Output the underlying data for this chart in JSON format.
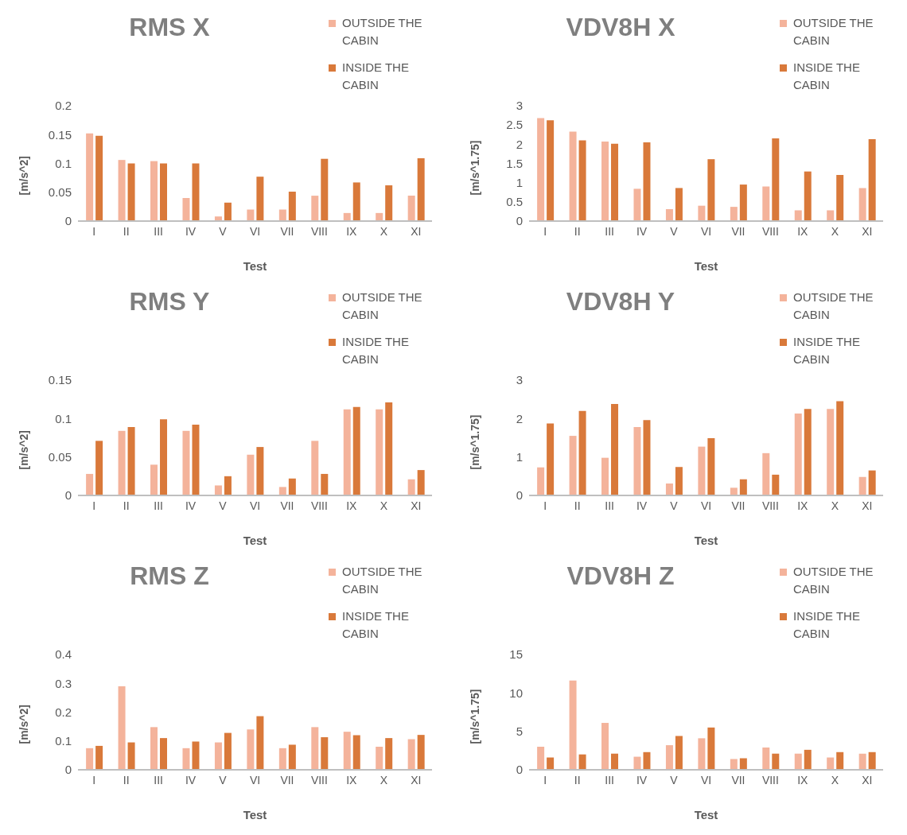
{
  "chart_data": [
    {
      "type": "bar",
      "title": "RMS X",
      "xlabel": "Test",
      "ylabel": "[m/s^2]",
      "categories": [
        "I",
        "II",
        "III",
        "IV",
        "V",
        "VI",
        "VII",
        "VIII",
        "IX",
        "X",
        "XI"
      ],
      "ylim": [
        0,
        0.2
      ],
      "yticks": [
        0,
        0.05,
        0.1,
        0.15,
        0.2
      ],
      "grid": false,
      "legend": "top right",
      "series": [
        {
          "name": "OUTSIDE THE CABIN",
          "color": "#f4b39b",
          "values": [
            0.152,
            0.106,
            0.104,
            0.04,
            0.008,
            0.02,
            0.02,
            0.044,
            0.014,
            0.014,
            0.044
          ]
        },
        {
          "name": "INSIDE THE CABIN",
          "color": "#d9793a",
          "values": [
            0.148,
            0.1,
            0.1,
            0.1,
            0.032,
            0.077,
            0.051,
            0.108,
            0.067,
            0.062,
            0.109
          ]
        }
      ]
    },
    {
      "type": "bar",
      "title": "VDV8H X",
      "xlabel": "Test",
      "ylabel": "[m/s^1.75]",
      "categories": [
        "I",
        "II",
        "III",
        "IV",
        "V",
        "VI",
        "VII",
        "VIII",
        "IX",
        "X",
        "XI"
      ],
      "ylim": [
        0,
        3
      ],
      "yticks": [
        0,
        0.5,
        1,
        1.5,
        2,
        2.5,
        3
      ],
      "grid": false,
      "legend": "top right",
      "series": [
        {
          "name": "OUTSIDE THE CABIN",
          "color": "#f4b39b",
          "values": [
            2.68,
            2.33,
            2.07,
            0.84,
            0.31,
            0.4,
            0.37,
            0.9,
            0.28,
            0.28,
            0.86
          ]
        },
        {
          "name": "INSIDE THE CABIN",
          "color": "#d9793a",
          "values": [
            2.62,
            2.1,
            2.01,
            2.05,
            0.86,
            1.61,
            0.95,
            2.15,
            1.29,
            1.2,
            2.13
          ]
        }
      ]
    },
    {
      "type": "bar",
      "title": "RMS Y",
      "xlabel": "Test",
      "ylabel": "[m/s^2]",
      "categories": [
        "I",
        "II",
        "III",
        "IV",
        "V",
        "VI",
        "VII",
        "VIII",
        "IX",
        "X",
        "XI"
      ],
      "ylim": [
        0,
        0.15
      ],
      "yticks": [
        0,
        0.05,
        0.1,
        0.15
      ],
      "grid": false,
      "legend": "top right",
      "series": [
        {
          "name": "OUTSIDE THE CABIN",
          "color": "#f4b39b",
          "values": [
            0.028,
            0.084,
            0.04,
            0.084,
            0.013,
            0.053,
            0.011,
            0.071,
            0.112,
            0.112,
            0.021
          ]
        },
        {
          "name": "INSIDE THE CABIN",
          "color": "#d9793a",
          "values": [
            0.071,
            0.089,
            0.099,
            0.092,
            0.025,
            0.063,
            0.022,
            0.028,
            0.115,
            0.121,
            0.033
          ]
        }
      ]
    },
    {
      "type": "bar",
      "title": "VDV8H Y",
      "xlabel": "Test",
      "ylabel": "[m/s^1.75]",
      "categories": [
        "I",
        "II",
        "III",
        "IV",
        "V",
        "VI",
        "VII",
        "VIII",
        "IX",
        "X",
        "XI"
      ],
      "ylim": [
        0,
        3
      ],
      "yticks": [
        0,
        1,
        2,
        3
      ],
      "grid": false,
      "legend": "top right",
      "series": [
        {
          "name": "OUTSIDE THE CABIN",
          "color": "#f4b39b",
          "values": [
            0.73,
            1.55,
            0.98,
            1.78,
            0.31,
            1.27,
            0.2,
            1.1,
            2.13,
            2.25,
            0.48
          ]
        },
        {
          "name": "INSIDE THE CABIN",
          "color": "#d9793a",
          "values": [
            1.87,
            2.2,
            2.38,
            1.96,
            0.74,
            1.49,
            0.42,
            0.54,
            2.25,
            2.45,
            0.65
          ]
        }
      ]
    },
    {
      "type": "bar",
      "title": "RMS Z",
      "xlabel": "Test",
      "ylabel": "[m/s^2]",
      "categories": [
        "I",
        "II",
        "III",
        "IV",
        "V",
        "VI",
        "VII",
        "VIII",
        "IX",
        "X",
        "XI"
      ],
      "ylim": [
        0,
        0.4
      ],
      "yticks": [
        0,
        0.1,
        0.2,
        0.3,
        0.4
      ],
      "grid": false,
      "legend": "top right",
      "series": [
        {
          "name": "OUTSIDE THE CABIN",
          "color": "#f4b39b",
          "values": [
            0.075,
            0.29,
            0.148,
            0.075,
            0.095,
            0.14,
            0.075,
            0.148,
            0.132,
            0.08,
            0.106
          ]
        },
        {
          "name": "INSIDE THE CABIN",
          "color": "#d9793a",
          "values": [
            0.083,
            0.095,
            0.11,
            0.098,
            0.128,
            0.186,
            0.087,
            0.113,
            0.12,
            0.11,
            0.121
          ]
        }
      ]
    },
    {
      "type": "bar",
      "title": "VDV8H Z",
      "xlabel": "Test",
      "ylabel": "[m/s^1.75]",
      "categories": [
        "I",
        "II",
        "III",
        "IV",
        "V",
        "VI",
        "VII",
        "VIII",
        "IX",
        "X",
        "XI"
      ],
      "ylim": [
        0,
        15
      ],
      "yticks": [
        0,
        5,
        10,
        15
      ],
      "grid": false,
      "legend": "top right",
      "series": [
        {
          "name": "OUTSIDE THE CABIN",
          "color": "#f4b39b",
          "values": [
            3.0,
            11.6,
            6.1,
            1.7,
            3.2,
            4.1,
            1.4,
            2.9,
            2.1,
            1.6,
            2.1
          ]
        },
        {
          "name": "INSIDE THE CABIN",
          "color": "#d9793a",
          "values": [
            1.6,
            2.0,
            2.1,
            2.3,
            4.4,
            5.5,
            1.5,
            2.1,
            2.6,
            2.3,
            2.3
          ]
        }
      ]
    }
  ]
}
